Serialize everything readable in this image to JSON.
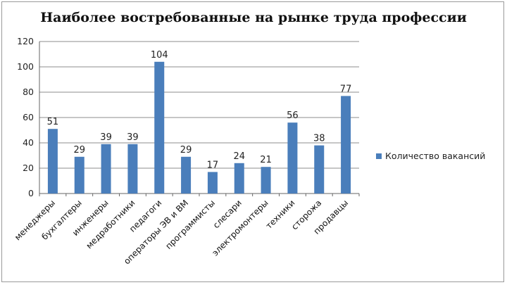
{
  "chart_data": {
    "type": "bar",
    "title": "Наиболее востребованные на рынке труда профессии",
    "categories": [
      "менеджеры",
      "бухгалтеры",
      "инженеры",
      "медработники",
      "педагоги",
      "операторы ЭВ и ВМ",
      "программисты",
      "слесари",
      "электромонтеры",
      "техники",
      "сторожа",
      "продавцы"
    ],
    "series": [
      {
        "name": "Количество вакансий",
        "values": [
          51,
          29,
          39,
          39,
          104,
          29,
          17,
          24,
          21,
          56,
          38,
          77
        ],
        "color": "#4a7ebb"
      }
    ],
    "ylim": [
      0,
      120
    ],
    "yticks": [
      0,
      20,
      40,
      60,
      80,
      100,
      120
    ],
    "grid": true,
    "legend": "right",
    "xlabel": "",
    "ylabel": ""
  }
}
